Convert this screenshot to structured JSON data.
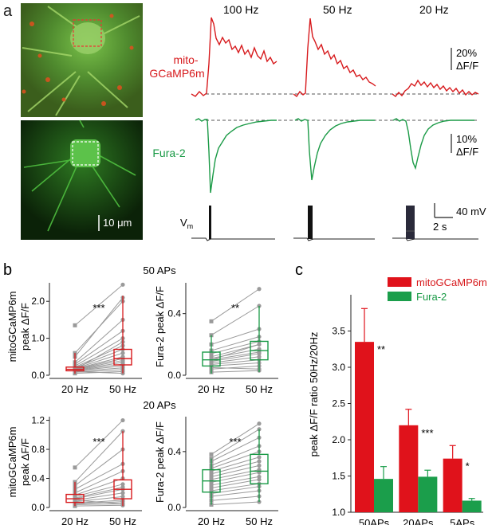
{
  "colors": {
    "red": "#d7191c",
    "green": "#1a9a46",
    "gray": "#9a9a9a",
    "dash": "#555555",
    "bar_red": "#e0121b",
    "bar_green": "#1b9e4b"
  },
  "panel_a": {
    "label": "a",
    "freqs": [
      "100 Hz",
      "50 Hz",
      "20 Hz"
    ],
    "red_label_1": "mito-",
    "red_label_2": "GCaMP6m",
    "green_label": "Fura-2",
    "vm_label": "V",
    "vm_sub": "m",
    "scale_red_1": "20%",
    "scale_red_2": "ΔF/F",
    "scale_green_1": "10%",
    "scale_green_2": "ΔF/F",
    "scale_mv": "40 mV",
    "scale_s": "2 s",
    "micro_scale": "10 μm"
  },
  "panel_b": {
    "label": "b",
    "header_50": "50 APs",
    "header_20": "20 APs",
    "ylabel_mito_1": "mitoGCaMP6m",
    "ylabel_mito_2": "peak ΔF/F",
    "ylabel_fura": "Fura-2 peak ΔF/F",
    "xticks": [
      "20 Hz",
      "50 Hz"
    ]
  },
  "panel_c": {
    "label": "c",
    "ylabel": "peak ΔF/F ratio 50Hz/20Hz"
  },
  "chart_data": [
    {
      "type": "scatter",
      "title": "mitoGCaMP6m, 50 APs",
      "categories": [
        "20 Hz",
        "50 Hz"
      ],
      "ylim": [
        0,
        2.5
      ],
      "yticks": [
        "0.0",
        "1.0",
        "2.0"
      ],
      "significance": "***",
      "box_20Hz": {
        "q1": 0.12,
        "median": 0.16,
        "q3": 0.22,
        "whisker_low": 0.04,
        "whisker_high": 0.6
      },
      "box_50Hz": {
        "q1": 0.28,
        "median": 0.45,
        "q3": 0.7,
        "whisker_low": 0.05,
        "whisker_high": 2.15
      },
      "pairs": [
        [
          0.05,
          0.1
        ],
        [
          0.08,
          0.15
        ],
        [
          0.1,
          0.2
        ],
        [
          0.12,
          0.25
        ],
        [
          0.13,
          0.3
        ],
        [
          0.14,
          0.35
        ],
        [
          0.15,
          0.4
        ],
        [
          0.16,
          0.45
        ],
        [
          0.17,
          0.5
        ],
        [
          0.18,
          0.6
        ],
        [
          0.2,
          0.7
        ],
        [
          0.22,
          0.8
        ],
        [
          0.25,
          1.0
        ],
        [
          0.3,
          1.2
        ],
        [
          0.35,
          1.5
        ],
        [
          0.5,
          2.1
        ],
        [
          1.35,
          2.45
        ],
        [
          0.1,
          0.05
        ],
        [
          0.6,
          2.0
        ],
        [
          0.15,
          0.9
        ]
      ]
    },
    {
      "type": "scatter",
      "title": "Fura-2, 50 APs",
      "categories": [
        "20 Hz",
        "50 Hz"
      ],
      "ylim": [
        0,
        0.6
      ],
      "yticks": [
        "0.0",
        "0.4"
      ],
      "significance": "**",
      "box_20Hz": {
        "q1": 0.06,
        "median": 0.1,
        "q3": 0.15,
        "whisker_low": 0.01,
        "whisker_high": 0.26
      },
      "box_50Hz": {
        "q1": 0.1,
        "median": 0.16,
        "q3": 0.22,
        "whisker_low": 0.02,
        "whisker_high": 0.45
      },
      "pairs": [
        [
          0.02,
          0.03
        ],
        [
          0.04,
          0.06
        ],
        [
          0.06,
          0.08
        ],
        [
          0.07,
          0.1
        ],
        [
          0.08,
          0.12
        ],
        [
          0.09,
          0.14
        ],
        [
          0.1,
          0.15
        ],
        [
          0.11,
          0.17
        ],
        [
          0.12,
          0.2
        ],
        [
          0.14,
          0.22
        ],
        [
          0.16,
          0.25
        ],
        [
          0.2,
          0.3
        ],
        [
          0.26,
          0.45
        ],
        [
          0.35,
          0.56
        ],
        [
          0.05,
          0.04
        ],
        [
          0.1,
          0.2
        ]
      ]
    },
    {
      "type": "scatter",
      "title": "mitoGCaMP6m, 20 APs",
      "categories": [
        "20 Hz",
        "50 Hz"
      ],
      "ylim": [
        0,
        1.25
      ],
      "yticks": [
        "0.0",
        "0.4",
        "0.8",
        "1.2"
      ],
      "significance": "***",
      "box_20Hz": {
        "q1": 0.07,
        "median": 0.12,
        "q3": 0.18,
        "whisker_low": 0.02,
        "whisker_high": 0.35
      },
      "box_50Hz": {
        "q1": 0.12,
        "median": 0.25,
        "q3": 0.38,
        "whisker_low": 0.02,
        "whisker_high": 1.05
      },
      "pairs": [
        [
          0.02,
          0.03
        ],
        [
          0.04,
          0.05
        ],
        [
          0.05,
          0.08
        ],
        [
          0.06,
          0.1
        ],
        [
          0.08,
          0.15
        ],
        [
          0.1,
          0.2
        ],
        [
          0.12,
          0.25
        ],
        [
          0.13,
          0.28
        ],
        [
          0.15,
          0.32
        ],
        [
          0.17,
          0.4
        ],
        [
          0.2,
          0.5
        ],
        [
          0.25,
          0.6
        ],
        [
          0.3,
          0.8
        ],
        [
          0.35,
          1.05
        ],
        [
          0.55,
          1.2
        ],
        [
          0.1,
          0.05
        ]
      ]
    },
    {
      "type": "scatter",
      "title": "Fura-2, 20 APs",
      "categories": [
        "20 Hz",
        "50 Hz"
      ],
      "ylim": [
        0,
        0.65
      ],
      "yticks": [
        "0.0",
        "0.4"
      ],
      "significance": "***",
      "box_20Hz": {
        "q1": 0.11,
        "median": 0.19,
        "q3": 0.27,
        "whisker_low": 0.02,
        "whisker_high": 0.35
      },
      "box_50Hz": {
        "q1": 0.17,
        "median": 0.26,
        "q3": 0.38,
        "whisker_low": 0.04,
        "whisker_high": 0.56
      },
      "pairs": [
        [
          0.02,
          0.04
        ],
        [
          0.05,
          0.08
        ],
        [
          0.08,
          0.12
        ],
        [
          0.1,
          0.15
        ],
        [
          0.12,
          0.17
        ],
        [
          0.14,
          0.2
        ],
        [
          0.16,
          0.22
        ],
        [
          0.18,
          0.25
        ],
        [
          0.2,
          0.27
        ],
        [
          0.22,
          0.3
        ],
        [
          0.24,
          0.33
        ],
        [
          0.26,
          0.36
        ],
        [
          0.28,
          0.4
        ],
        [
          0.3,
          0.44
        ],
        [
          0.33,
          0.5
        ],
        [
          0.35,
          0.56
        ],
        [
          0.38,
          0.6
        ]
      ]
    },
    {
      "type": "bar",
      "categories": [
        "50APs",
        "20APs",
        "5APs"
      ],
      "series": [
        {
          "name": "mitoGCaMP6m",
          "values": [
            3.35,
            2.2,
            1.74
          ],
          "errors": [
            0.46,
            0.22,
            0.18
          ],
          "significance": [
            "**",
            "***",
            "*"
          ]
        },
        {
          "name": "Fura-2",
          "values": [
            1.46,
            1.49,
            1.16
          ],
          "errors": [
            0.17,
            0.09,
            0.03
          ]
        }
      ],
      "ylabel": "peak ΔF/F ratio 50Hz/20Hz",
      "ylim": [
        1.0,
        4.0
      ],
      "yticks": [
        "1.0",
        "1.5",
        "2.0",
        "2.5",
        "3.0",
        "3.5"
      ],
      "legend": "top-right"
    }
  ]
}
